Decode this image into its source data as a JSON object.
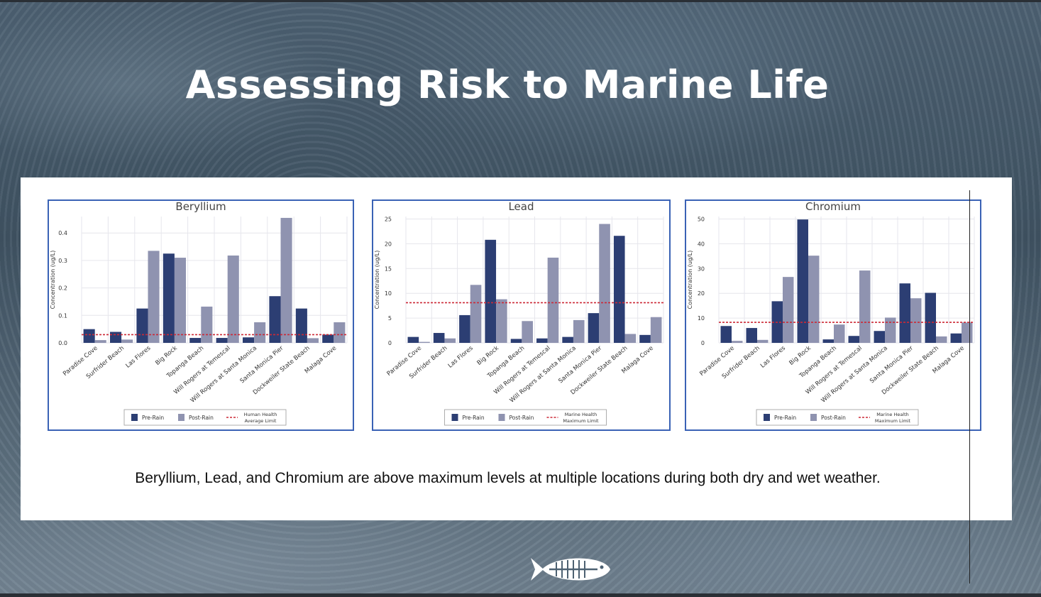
{
  "slide": {
    "title": "Assessing Risk to Marine Life",
    "caption": "Beryllium, Lead, and Chromium are above maximum levels at multiple locations during both dry and wet weather."
  },
  "colors": {
    "pre": "#2c3e73",
    "post": "#8f93b0",
    "limit": "#cc2936",
    "grid": "#e6e6ec",
    "border": "#3a62b5"
  },
  "chart_data": [
    {
      "type": "bar",
      "title": "Beryllium",
      "ylabel": "Concentration (ug/L)",
      "xlabel": "",
      "ylim": [
        0,
        0.46
      ],
      "yticks": [
        "0.0",
        "0.1",
        "0.2",
        "0.3",
        "0.4"
      ],
      "ytick_values": [
        0,
        0.1,
        0.2,
        0.3,
        0.4
      ],
      "categories": [
        "Paradise Cove",
        "Surfrider Beach",
        "Las Flores",
        "Big Rock",
        "Topanga Beach",
        "Will Rogers at Temescal",
        "Will Rogers at Santa Monica",
        "Santa Monica Pier",
        "Dockweiler State Beach",
        "Malaga Cove"
      ],
      "series": [
        {
          "name": "Pre-Rain",
          "values": [
            0.05,
            0.04,
            0.125,
            0.325,
            0.018,
            0.018,
            0.02,
            0.17,
            0.125,
            0.03
          ]
        },
        {
          "name": "Post-Rain",
          "values": [
            0.01,
            0.012,
            0.335,
            0.31,
            0.132,
            0.318,
            0.075,
            0.455,
            0.017,
            0.075
          ]
        }
      ],
      "limit": {
        "value": 0.03,
        "label_line1": "Human Health",
        "label_line2": "Average Limit"
      }
    },
    {
      "type": "bar",
      "title": "Lead",
      "ylabel": "Concentration (ug/L)",
      "xlabel": "",
      "ylim": [
        0,
        25.5
      ],
      "yticks": [
        "0",
        "5",
        "10",
        "15",
        "20",
        "25"
      ],
      "ytick_values": [
        0,
        5,
        10,
        15,
        20,
        25
      ],
      "categories": [
        "Paradise Cove",
        "Surfrider Beach",
        "Las Flores",
        "Big Rock",
        "Topanga Beach",
        "Will Rogers at Temescal",
        "Will Rogers at Santa Monica",
        "Santa Monica Pier",
        "Dockweiler State Beach",
        "Malaga Cove"
      ],
      "series": [
        {
          "name": "Pre-Rain",
          "values": [
            1.2,
            2.0,
            5.6,
            20.8,
            0.8,
            0.9,
            1.2,
            6.0,
            21.6,
            1.6
          ]
        },
        {
          "name": "Post-Rain",
          "values": [
            0.2,
            0.9,
            11.7,
            8.8,
            4.4,
            17.2,
            4.6,
            24.0,
            1.8,
            5.2
          ]
        }
      ],
      "limit": {
        "value": 8.1,
        "label_line1": "Marine Health",
        "label_line2": "Maximum Limit"
      }
    },
    {
      "type": "bar",
      "title": "Chromium",
      "ylabel": "Concentration (ug/L)",
      "xlabel": "",
      "ylim": [
        0,
        51
      ],
      "yticks": [
        "0",
        "10",
        "20",
        "30",
        "40",
        "50"
      ],
      "ytick_values": [
        0,
        10,
        20,
        30,
        40,
        50
      ],
      "categories": [
        "Paradise Cove",
        "Surfrider Beach",
        "Las Flores",
        "Big Rock",
        "Topanga Beach",
        "Will Rogers at Temescal",
        "Will Rogers at Santa Monica",
        "Santa Monica Pier",
        "Dockweiler State Beach",
        "Malaga Cove"
      ],
      "series": [
        {
          "name": "Pre-Rain",
          "values": [
            6.8,
            6.0,
            16.8,
            49.8,
            1.4,
            2.8,
            4.8,
            24.0,
            20.2,
            3.8
          ]
        },
        {
          "name": "Post-Rain",
          "values": [
            0.8,
            1.2,
            26.6,
            35.2,
            7.4,
            29.2,
            10.2,
            18.0,
            2.6,
            8.2
          ]
        }
      ],
      "limit": {
        "value": 8.3,
        "label_line1": "Marine Health",
        "label_line2": "Maximum Limit"
      }
    }
  ],
  "logo": {
    "name": "fish skeleton logo"
  }
}
